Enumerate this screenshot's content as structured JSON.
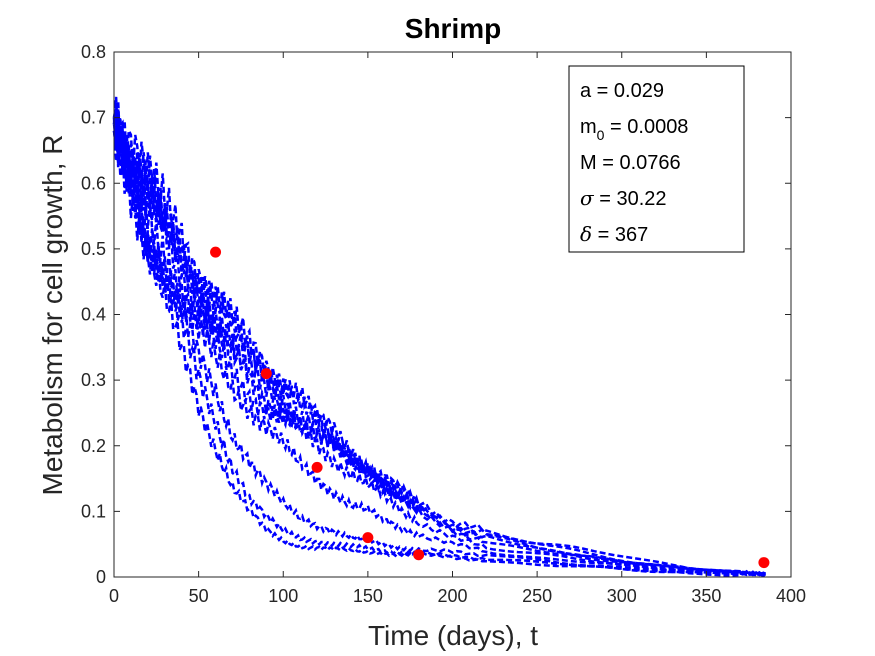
{
  "chart_data": {
    "type": "line",
    "title": "Shrimp",
    "xlabel": "Time (days), t",
    "ylabel": "Metabolism for cell growth, R",
    "xlim": [
      0,
      400
    ],
    "ylim": [
      0,
      0.8
    ],
    "x_ticks": [
      0,
      50,
      100,
      150,
      200,
      250,
      300,
      350,
      400
    ],
    "x_tick_labels": [
      "0",
      "50",
      "100",
      "150",
      "200",
      "250",
      "300",
      "350",
      "400"
    ],
    "y_ticks": [
      0,
      0.1,
      0.2,
      0.3,
      0.4,
      0.5,
      0.6,
      0.7,
      0.8
    ],
    "y_tick_labels": [
      "0",
      "0.1",
      "0.2",
      "0.3",
      "0.4",
      "0.5",
      "0.6",
      "0.7",
      "0.8"
    ],
    "grid": false,
    "series_color": "#0000ff",
    "observed_color": "#ff0000",
    "simulations": [
      {
        "x": [
          0,
          10,
          20,
          30,
          40,
          50,
          60,
          70,
          80,
          90,
          100,
          110,
          120,
          130,
          140,
          150,
          160,
          170,
          180,
          200,
          220,
          250,
          280,
          310,
          340,
          370,
          385
        ],
        "values": [
          0.69,
          0.6,
          0.5,
          0.42,
          0.34,
          0.26,
          0.2,
          0.14,
          0.1,
          0.07,
          0.055,
          0.048,
          0.045,
          0.042,
          0.04,
          0.038,
          0.036,
          0.035,
          0.034,
          0.03,
          0.025,
          0.02,
          0.015,
          0.01,
          0.006,
          0.004,
          0.003
        ]
      },
      {
        "x": [
          0,
          10,
          20,
          30,
          40,
          50,
          60,
          70,
          80,
          90,
          100,
          110,
          120,
          130,
          140,
          150,
          160,
          170,
          180,
          200,
          220,
          250,
          280,
          310,
          340,
          370,
          385
        ],
        "values": [
          0.68,
          0.62,
          0.52,
          0.45,
          0.38,
          0.3,
          0.24,
          0.17,
          0.12,
          0.09,
          0.07,
          0.06,
          0.055,
          0.05,
          0.046,
          0.043,
          0.04,
          0.038,
          0.036,
          0.032,
          0.028,
          0.022,
          0.016,
          0.011,
          0.007,
          0.005,
          0.004
        ]
      },
      {
        "x": [
          0,
          10,
          20,
          30,
          40,
          50,
          60,
          70,
          80,
          90,
          100,
          110,
          120,
          130,
          140,
          150,
          160,
          170,
          180,
          200,
          220,
          250,
          280,
          310,
          340,
          370,
          385
        ],
        "values": [
          0.7,
          0.6,
          0.52,
          0.46,
          0.4,
          0.33,
          0.28,
          0.22,
          0.18,
          0.14,
          0.11,
          0.09,
          0.08,
          0.07,
          0.06,
          0.055,
          0.05,
          0.045,
          0.042,
          0.038,
          0.033,
          0.026,
          0.019,
          0.013,
          0.008,
          0.005,
          0.004
        ]
      },
      {
        "x": [
          0,
          10,
          20,
          30,
          40,
          50,
          60,
          70,
          80,
          90,
          100,
          110,
          120,
          130,
          140,
          150,
          160,
          170,
          180,
          200,
          220,
          250,
          280,
          310,
          340,
          370,
          385
        ],
        "values": [
          0.69,
          0.6,
          0.53,
          0.48,
          0.42,
          0.37,
          0.33,
          0.29,
          0.26,
          0.23,
          0.2,
          0.17,
          0.15,
          0.13,
          0.11,
          0.1,
          0.085,
          0.075,
          0.065,
          0.05,
          0.04,
          0.03,
          0.022,
          0.015,
          0.009,
          0.006,
          0.004
        ]
      },
      {
        "x": [
          0,
          10,
          20,
          30,
          40,
          50,
          60,
          70,
          80,
          90,
          100,
          110,
          120,
          130,
          140,
          150,
          160,
          170,
          180,
          200,
          220,
          250,
          280,
          310,
          340,
          370,
          385
        ],
        "values": [
          0.68,
          0.62,
          0.55,
          0.5,
          0.44,
          0.39,
          0.35,
          0.31,
          0.28,
          0.26,
          0.24,
          0.22,
          0.2,
          0.18,
          0.16,
          0.14,
          0.12,
          0.1,
          0.085,
          0.06,
          0.045,
          0.034,
          0.025,
          0.017,
          0.01,
          0.006,
          0.004
        ]
      },
      {
        "x": [
          0,
          10,
          20,
          30,
          40,
          50,
          60,
          70,
          80,
          90,
          100,
          110,
          120,
          130,
          140,
          150,
          160,
          170,
          180,
          200,
          220,
          250,
          280,
          310,
          340,
          370,
          385
        ],
        "values": [
          0.7,
          0.64,
          0.6,
          0.55,
          0.5,
          0.45,
          0.41,
          0.38,
          0.35,
          0.32,
          0.29,
          0.27,
          0.24,
          0.21,
          0.18,
          0.16,
          0.14,
          0.12,
          0.1,
          0.075,
          0.058,
          0.045,
          0.03,
          0.02,
          0.012,
          0.007,
          0.005
        ]
      },
      {
        "x": [
          0,
          10,
          20,
          30,
          40,
          50,
          60,
          70,
          80,
          90,
          100,
          110,
          120,
          130,
          140,
          150,
          160,
          170,
          180,
          200,
          220,
          250,
          280,
          310,
          340,
          370,
          385
        ],
        "values": [
          0.69,
          0.63,
          0.58,
          0.52,
          0.47,
          0.42,
          0.38,
          0.34,
          0.3,
          0.27,
          0.25,
          0.23,
          0.21,
          0.2,
          0.18,
          0.17,
          0.15,
          0.13,
          0.11,
          0.085,
          0.07,
          0.055,
          0.04,
          0.026,
          0.015,
          0.008,
          0.005
        ]
      },
      {
        "x": [
          0,
          10,
          20,
          30,
          40,
          50,
          60,
          70,
          80,
          90,
          100,
          110,
          120,
          130,
          140,
          150,
          160,
          170,
          180,
          200,
          220,
          250,
          280,
          310,
          340,
          370,
          385
        ],
        "values": [
          0.7,
          0.64,
          0.6,
          0.56,
          0.52,
          0.47,
          0.43,
          0.39,
          0.35,
          0.32,
          0.3,
          0.27,
          0.24,
          0.22,
          0.19,
          0.17,
          0.15,
          0.13,
          0.11,
          0.08,
          0.065,
          0.05,
          0.035,
          0.022,
          0.013,
          0.007,
          0.005
        ]
      },
      {
        "x": [
          0,
          10,
          20,
          30,
          40,
          50,
          60,
          70,
          80,
          90,
          100,
          110,
          120,
          130,
          140,
          150,
          160,
          170,
          180,
          200,
          220,
          250,
          280,
          310,
          340,
          370,
          385
        ],
        "values": [
          0.69,
          0.63,
          0.57,
          0.52,
          0.48,
          0.44,
          0.4,
          0.36,
          0.33,
          0.3,
          0.27,
          0.25,
          0.23,
          0.2,
          0.18,
          0.16,
          0.14,
          0.12,
          0.1,
          0.075,
          0.06,
          0.046,
          0.032,
          0.02,
          0.012,
          0.007,
          0.005
        ]
      },
      {
        "x": [
          0,
          10,
          20,
          30,
          40,
          50,
          60,
          70,
          80,
          90,
          100,
          110,
          120,
          130,
          140,
          150,
          160,
          170,
          180,
          200,
          220,
          250,
          280,
          310,
          340,
          370,
          385
        ],
        "values": [
          0.7,
          0.65,
          0.59,
          0.53,
          0.48,
          0.43,
          0.39,
          0.35,
          0.31,
          0.28,
          0.26,
          0.24,
          0.22,
          0.2,
          0.18,
          0.16,
          0.14,
          0.12,
          0.1,
          0.07,
          0.055,
          0.042,
          0.03,
          0.019,
          0.011,
          0.006,
          0.004
        ]
      }
    ],
    "observed": {
      "x": [
        60,
        90,
        120,
        150,
        180,
        384
      ],
      "values": [
        0.495,
        0.31,
        0.167,
        0.06,
        0.034,
        0.022
      ]
    },
    "annotation": {
      "lines": [
        {
          "label": "a",
          "sub": "",
          "value": "= 0.029",
          "greek": false
        },
        {
          "label": "m",
          "sub": "0",
          "value": "= 0.0008",
          "greek": false
        },
        {
          "label": "M",
          "sub": "",
          "value": "= 0.0766",
          "greek": false
        },
        {
          "label": "σ",
          "sub": "",
          "value": "= 30.22",
          "greek": true
        },
        {
          "label": "δ",
          "sub": "",
          "value": "= 367",
          "greek": true
        }
      ]
    }
  }
}
